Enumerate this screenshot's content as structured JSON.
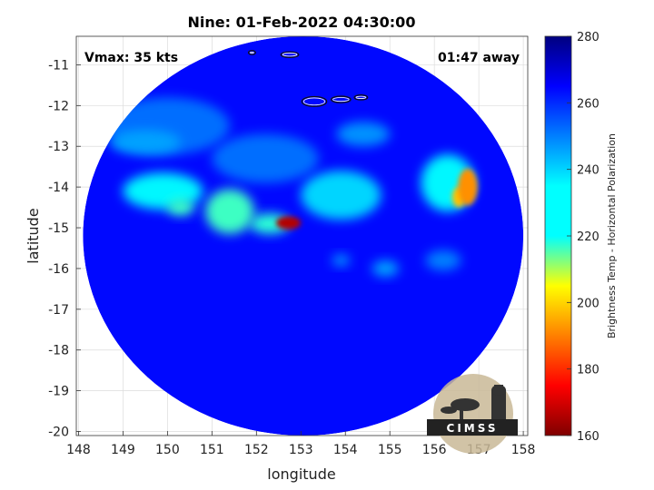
{
  "chart_data": {
    "type": "heatmap",
    "title": "Nine: 01-Feb-2022 04:30:00",
    "xlabel": "longitude",
    "ylabel": "latitude",
    "xlim": [
      147.95,
      158.1
    ],
    "ylim": [
      -20.1,
      -10.3
    ],
    "xticks": [
      148,
      149,
      150,
      151,
      152,
      153,
      154,
      155,
      156,
      157,
      158
    ],
    "yticks": [
      -11,
      -12,
      -13,
      -14,
      -15,
      -16,
      -17,
      -18,
      -19,
      -20
    ],
    "grid": true,
    "colorbar": {
      "label": "Brightness Temp - Horizontal Polarization",
      "range": [
        160,
        280
      ],
      "ticks": [
        160,
        180,
        200,
        220,
        240,
        260,
        280
      ],
      "colormap": "jet"
    },
    "annotations": {
      "vmax": "Vmax: 35 kts",
      "time_away": "01:47 away"
    },
    "swath": {
      "center_lon": 153.05,
      "center_lat": -15.2,
      "radius_lon": 4.95,
      "radius_lat": 4.9
    },
    "background_value": 264,
    "features": [
      {
        "lon": 152.72,
        "lat": -14.88,
        "value": 166,
        "rx_lon": 0.28,
        "ry_lat": 0.16
      },
      {
        "lon": 156.75,
        "lat": -14.0,
        "value": 192,
        "rx_lon": 0.22,
        "ry_lat": 0.45
      },
      {
        "lon": 156.55,
        "lat": -14.25,
        "value": 198,
        "rx_lon": 0.15,
        "ry_lat": 0.25
      },
      {
        "lon": 151.4,
        "lat": -14.6,
        "value": 228,
        "rx_lon": 0.55,
        "ry_lat": 0.55
      },
      {
        "lon": 152.3,
        "lat": -14.9,
        "value": 230,
        "rx_lon": 0.45,
        "ry_lat": 0.25
      },
      {
        "lon": 149.9,
        "lat": -14.1,
        "value": 236,
        "rx_lon": 0.9,
        "ry_lat": 0.45
      },
      {
        "lon": 150.3,
        "lat": -14.5,
        "value": 228,
        "rx_lon": 0.3,
        "ry_lat": 0.2
      },
      {
        "lon": 153.9,
        "lat": -14.2,
        "value": 240,
        "rx_lon": 0.9,
        "ry_lat": 0.6
      },
      {
        "lon": 156.3,
        "lat": -13.9,
        "value": 236,
        "rx_lon": 0.6,
        "ry_lat": 0.7
      },
      {
        "lon": 149.5,
        "lat": -12.9,
        "value": 246,
        "rx_lon": 0.8,
        "ry_lat": 0.3
      },
      {
        "lon": 154.4,
        "lat": -12.7,
        "value": 248,
        "rx_lon": 0.6,
        "ry_lat": 0.3
      },
      {
        "lon": 154.9,
        "lat": -16.0,
        "value": 246,
        "rx_lon": 0.3,
        "ry_lat": 0.2
      },
      {
        "lon": 153.9,
        "lat": -15.8,
        "value": 248,
        "rx_lon": 0.2,
        "ry_lat": 0.15
      },
      {
        "lon": 156.2,
        "lat": -15.8,
        "value": 250,
        "rx_lon": 0.4,
        "ry_lat": 0.25
      },
      {
        "lon": 150.0,
        "lat": -12.5,
        "value": 252,
        "rx_lon": 1.4,
        "ry_lat": 0.7
      },
      {
        "lon": 152.2,
        "lat": -13.3,
        "value": 252,
        "rx_lon": 1.2,
        "ry_lat": 0.6
      }
    ],
    "coastlines": [
      {
        "lon": 152.75,
        "lat": -10.75,
        "rx_lon": 0.2,
        "ry_lat": 0.07
      },
      {
        "lon": 153.3,
        "lat": -11.9,
        "rx_lon": 0.28,
        "ry_lat": 0.12
      },
      {
        "lon": 153.9,
        "lat": -11.85,
        "rx_lon": 0.22,
        "ry_lat": 0.08
      },
      {
        "lon": 154.35,
        "lat": -11.8,
        "rx_lon": 0.15,
        "ry_lat": 0.06
      },
      {
        "lon": 151.9,
        "lat": -10.7,
        "rx_lon": 0.08,
        "ry_lat": 0.05
      }
    ]
  },
  "logo": {
    "text": "CIMSS"
  }
}
